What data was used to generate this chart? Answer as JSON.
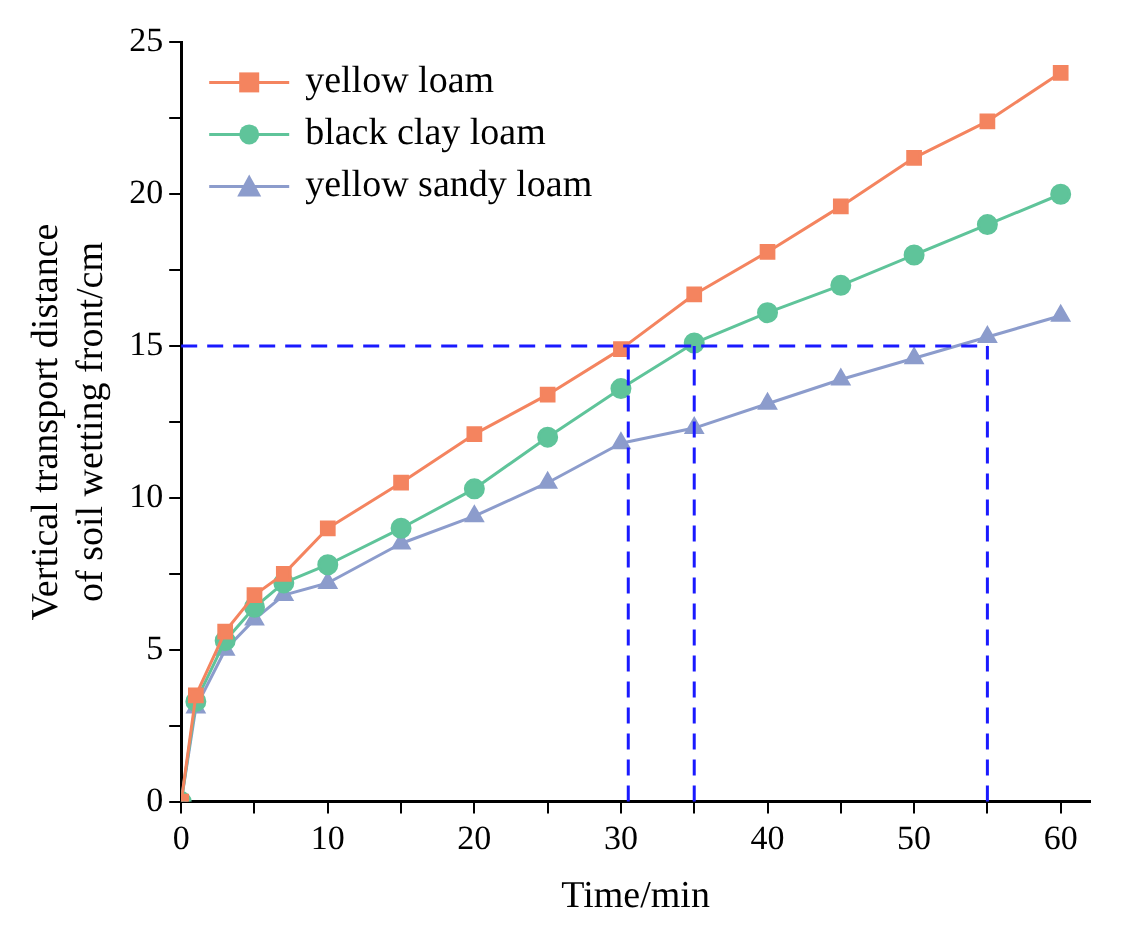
{
  "chart_data": {
    "type": "line",
    "xlabel": "Time/min",
    "ylabel": "Vertical transport distance of soil wetting front/cm",
    "x": [
      0,
      1,
      3,
      5,
      7,
      10,
      15,
      20,
      25,
      30,
      35,
      40,
      45,
      50,
      55,
      60
    ],
    "series": [
      {
        "name": "yellow loam",
        "color": "#f4845f",
        "marker": "square",
        "values": [
          0,
          3.5,
          5.6,
          6.8,
          7.5,
          9.0,
          10.5,
          12.1,
          13.4,
          14.9,
          16.7,
          18.1,
          19.6,
          21.2,
          22.4,
          24.0
        ]
      },
      {
        "name": "black clay loam",
        "color": "#5fc49a",
        "marker": "circle",
        "values": [
          0,
          3.3,
          5.3,
          6.4,
          7.2,
          7.8,
          9.0,
          10.3,
          12.0,
          13.6,
          15.1,
          16.1,
          17.0,
          18.0,
          19.0,
          20.0
        ]
      },
      {
        "name": "yellow sandy loam",
        "color": "#8c9ccc",
        "marker": "triangle",
        "values": [
          0,
          3.1,
          5.0,
          6.0,
          6.8,
          7.2,
          8.5,
          9.4,
          10.5,
          11.8,
          12.3,
          13.1,
          13.9,
          14.6,
          15.3,
          16.0
        ]
      }
    ],
    "xlim": [
      0,
      62
    ],
    "xticks": [
      0,
      {
        "value": 5,
        "label": null
      },
      10,
      {
        "value": 15,
        "label": null
      },
      20,
      {
        "value": 25,
        "label": null
      },
      30,
      {
        "value": 35,
        "label": null
      },
      40,
      {
        "value": 45,
        "label": null
      },
      50,
      {
        "value": 55,
        "label": null
      },
      60
    ],
    "ylim": [
      0,
      25
    ],
    "yticks": [
      0,
      {
        "value": 2.5,
        "label": null
      },
      5,
      {
        "value": 7.5,
        "label": null
      },
      10,
      {
        "value": 12.5,
        "label": null
      },
      15,
      {
        "value": 17.5,
        "label": null
      },
      20,
      {
        "value": 22.5,
        "label": null
      },
      25
    ],
    "ref_lines": [
      {
        "axis": "y",
        "value": 15,
        "color": "#1a1aff",
        "line_style": "dashed"
      },
      {
        "axis": "x",
        "value": 30.5,
        "color": "#1a1aff",
        "line_style": "dashed"
      },
      {
        "axis": "x",
        "value": 35,
        "color": "#1a1aff",
        "line_style": "dashed"
      },
      {
        "axis": "x",
        "value": 55,
        "color": "#1a1aff",
        "line_style": "dashed"
      }
    ],
    "grid": false,
    "legend": "top left",
    "line_style": "solid"
  }
}
